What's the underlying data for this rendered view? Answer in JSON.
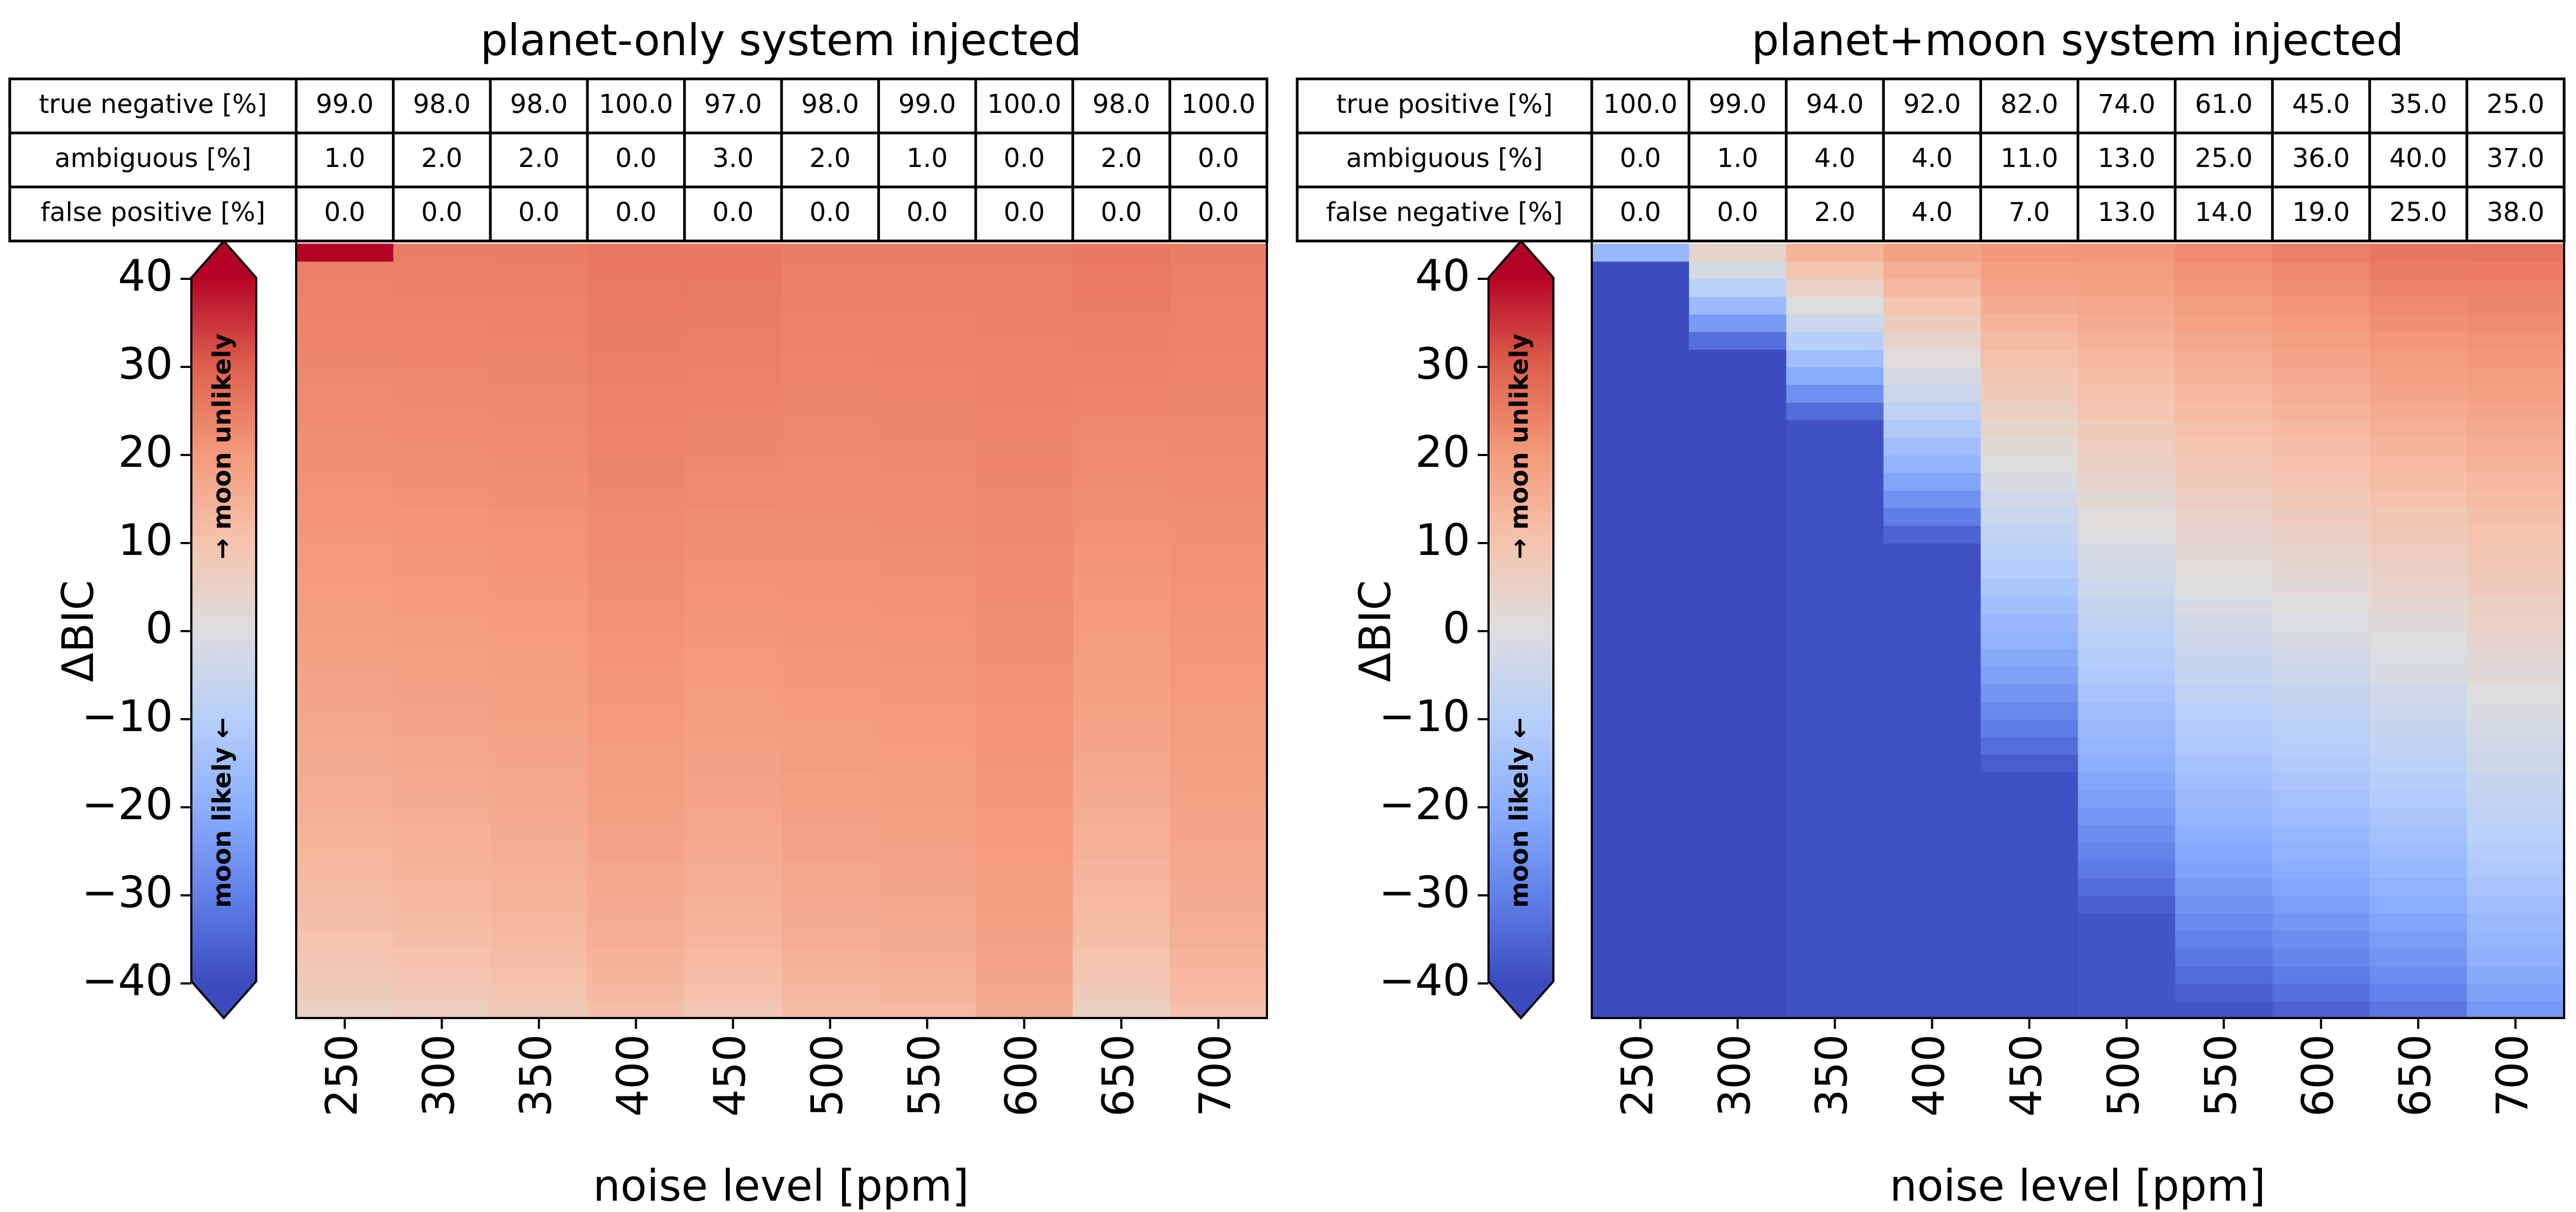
{
  "chart_data": [
    {
      "type": "heatmap",
      "title": "planet-only system injected",
      "xlabel": "noise level [ppm]",
      "ylabel": "ΔBIC",
      "x": [
        250,
        300,
        350,
        400,
        450,
        500,
        550,
        600,
        650,
        700
      ],
      "x_tick_labels": [
        "250",
        "300",
        "350",
        "400",
        "450",
        "500",
        "550",
        "600",
        "650",
        "700"
      ],
      "y_ticks": [
        40,
        30,
        20,
        10,
        0,
        -10,
        -20,
        -30,
        -40
      ],
      "y_tick_labels": [
        "40",
        "30",
        "20",
        "10",
        "0",
        "−10",
        "−20",
        "−30",
        "−40"
      ],
      "ylim": [
        -44,
        44
      ],
      "colormap": "coolwarm",
      "color_range": [
        -45,
        45
      ],
      "colorbar_labels": {
        "top": "→ moon unlikely",
        "bottom": "moon likely ←"
      },
      "table": {
        "row_labels": [
          "true negative [%]",
          "ambiguous [%]",
          "false positive [%]"
        ],
        "rows": [
          [
            "99.0",
            "98.0",
            "98.0",
            "100.0",
            "97.0",
            "98.0",
            "99.0",
            "100.0",
            "98.0",
            "100.0"
          ],
          [
            "1.0",
            "2.0",
            "2.0",
            "0.0",
            "3.0",
            "2.0",
            "1.0",
            "0.0",
            "2.0",
            "0.0"
          ],
          [
            "0.0",
            "0.0",
            "0.0",
            "0.0",
            "0.0",
            "0.0",
            "0.0",
            "0.0",
            "0.0",
            "0.0"
          ]
        ]
      },
      "column_profiles": [
        {
          "top": 28,
          "bottom": 2,
          "peak": 45,
          "peak_from": 42
        },
        {
          "top": 28,
          "bottom": 4
        },
        {
          "top": 28,
          "bottom": 6
        },
        {
          "top": 29,
          "bottom": 10
        },
        {
          "top": 29,
          "bottom": 7
        },
        {
          "top": 28,
          "bottom": 11
        },
        {
          "top": 28,
          "bottom": 12
        },
        {
          "top": 28,
          "bottom": 16
        },
        {
          "top": 29,
          "bottom": 3
        },
        {
          "top": 28,
          "bottom": 10
        }
      ]
    },
    {
      "type": "heatmap",
      "title": "planet+moon system injected",
      "xlabel": "noise level [ppm]",
      "ylabel": "ΔBIC",
      "x": [
        250,
        300,
        350,
        400,
        450,
        500,
        550,
        600,
        650,
        700
      ],
      "x_tick_labels": [
        "250",
        "300",
        "350",
        "400",
        "450",
        "500",
        "550",
        "600",
        "650",
        "700"
      ],
      "y_ticks": [
        40,
        30,
        20,
        10,
        0,
        -10,
        -20,
        -30,
        -40
      ],
      "y_tick_labels": [
        "40",
        "30",
        "20",
        "10",
        "0",
        "−10",
        "−20",
        "−30",
        "−40"
      ],
      "ylim": [
        -44,
        44
      ],
      "colormap": "coolwarm",
      "color_range": [
        -45,
        45
      ],
      "colorbar_labels": {
        "top": "→ moon unlikely",
        "bottom": "moon likely ←"
      },
      "table": {
        "row_labels": [
          "true positive [%]",
          "ambiguous [%]",
          "false negative [%]"
        ],
        "rows": [
          [
            "100.0",
            "99.0",
            "94.0",
            "92.0",
            "82.0",
            "74.0",
            "61.0",
            "45.0",
            "35.0",
            "25.0"
          ],
          [
            "0.0",
            "1.0",
            "4.0",
            "4.0",
            "11.0",
            "13.0",
            "25.0",
            "36.0",
            "40.0",
            "37.0"
          ],
          [
            "0.0",
            "0.0",
            "2.0",
            "4.0",
            "7.0",
            "13.0",
            "14.0",
            "19.0",
            "25.0",
            "38.0"
          ]
        ]
      },
      "column_profiles": [
        {
          "base": -45,
          "trans_from": 41,
          "trans_to": 44,
          "top": -10
        },
        {
          "base": -45,
          "trans_from": 32,
          "trans_to": 44,
          "top": 8
        },
        {
          "base": -44,
          "trans_from": 24,
          "trans_to": 44,
          "top": 18
        },
        {
          "base": -44,
          "trans_from": 10,
          "trans_to": 44,
          "top": 22
        },
        {
          "base": -44,
          "trans_from": -16,
          "trans_to": 44,
          "top": 24
        },
        {
          "base": -43,
          "trans_from": -32,
          "trans_to": 44,
          "top": 24
        },
        {
          "base": -43,
          "trans_from": -42,
          "trans_to": 44,
          "top": 26
        },
        {
          "base": -42,
          "trans_from": -44,
          "trans_to": 44,
          "top": 28
        },
        {
          "base": -38,
          "trans_from": -44,
          "trans_to": 44,
          "top": 30
        },
        {
          "base": -30,
          "trans_from": -44,
          "trans_to": 44,
          "top": 30
        }
      ]
    }
  ]
}
